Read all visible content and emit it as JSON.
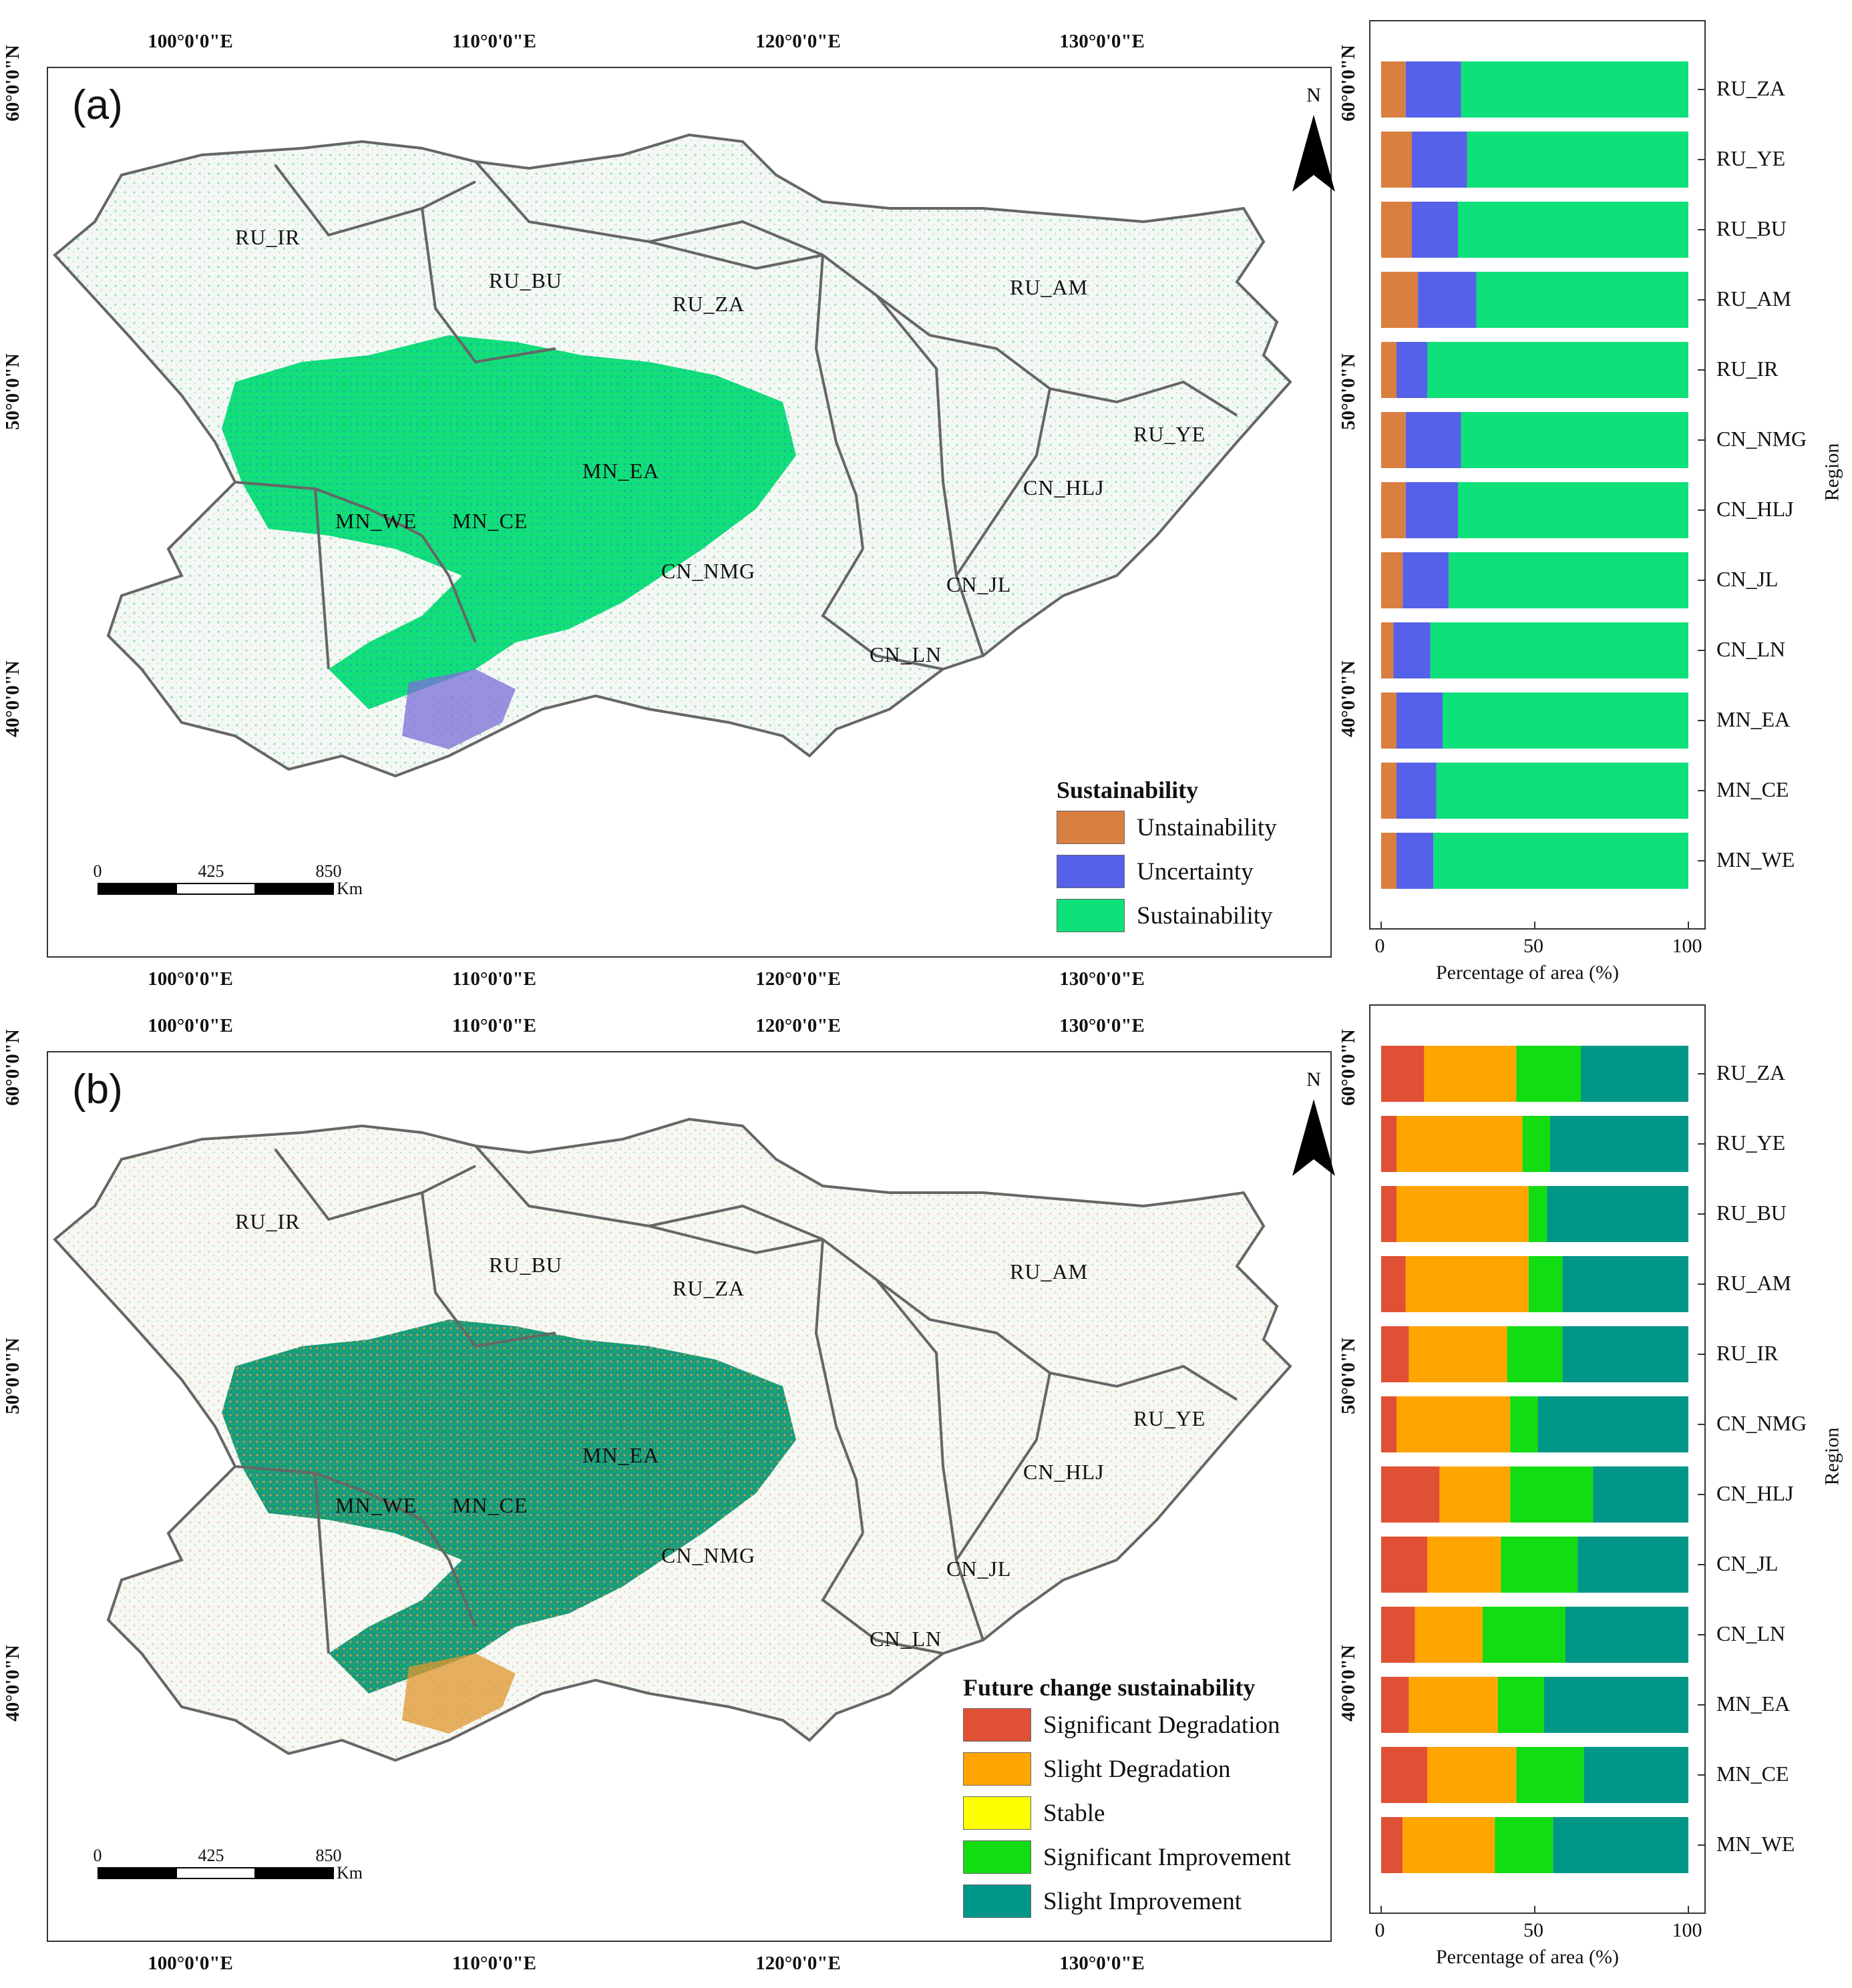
{
  "panels": [
    {
      "label": "(a)",
      "legend": {
        "title": "Sustainability",
        "items": [
          {
            "label": "Unstainability",
            "color": "#d97f3f"
          },
          {
            "label": "Uncertainty",
            "color": "#5561e8"
          },
          {
            "label": "Sustainability",
            "color": "#0ee07a"
          }
        ]
      }
    },
    {
      "label": "(b)",
      "legend": {
        "title": "Future change sustainability",
        "items": [
          {
            "label": "Significant Degradation",
            "color": "#e05035"
          },
          {
            "label": "Slight Degradation",
            "color": "#ffa500"
          },
          {
            "label": "Stable",
            "color": "#ffff00"
          },
          {
            "label": "Significant Improvement",
            "color": "#12dc12"
          },
          {
            "label": "Slight Improvement",
            "color": "#009688"
          }
        ]
      }
    }
  ],
  "map": {
    "lon_labels": [
      "100°0'0\"E",
      "110°0'0\"E",
      "120°0'0\"E",
      "130°0'0\"E"
    ],
    "lat_labels": [
      "60°0'0\"N",
      "50°0'0\"N",
      "40°0'0\"N"
    ],
    "north": "N",
    "scale": {
      "ticks": [
        "0",
        "425",
        "850"
      ],
      "unit": "Km"
    },
    "regions": [
      "RU_IR",
      "RU_BU",
      "RU_ZA",
      "RU_AM",
      "RU_YE",
      "MN_EA",
      "MN_WE",
      "MN_CE",
      "CN_NMG",
      "CN_HLJ",
      "CN_JL",
      "CN_LN"
    ]
  },
  "chart_data": [
    {
      "type": "bar",
      "orientation": "horizontal-stacked",
      "categories": [
        "RU_ZA",
        "RU_YE",
        "RU_BU",
        "RU_AM",
        "RU_IR",
        "CN_NMG",
        "CN_HLJ",
        "CN_JL",
        "CN_LN",
        "MN_EA",
        "MN_CE",
        "MN_WE"
      ],
      "series": [
        {
          "name": "Unstainability",
          "color": "#d97f3f",
          "values": [
            8,
            10,
            10,
            12,
            5,
            8,
            8,
            7,
            4,
            5,
            5,
            5
          ]
        },
        {
          "name": "Uncertainty",
          "color": "#5561e8",
          "values": [
            18,
            18,
            15,
            19,
            10,
            18,
            17,
            15,
            12,
            15,
            13,
            12
          ]
        },
        {
          "name": "Sustainability",
          "color": "#0ee07a",
          "values": [
            74,
            72,
            75,
            69,
            85,
            74,
            75,
            78,
            84,
            80,
            82,
            83
          ]
        }
      ],
      "xlabel": "Percentage of area (%)",
      "ylabel": "Region",
      "xlim": [
        0,
        100
      ],
      "xticks": [
        "0",
        "50",
        "100"
      ]
    },
    {
      "type": "bar",
      "orientation": "horizontal-stacked",
      "categories": [
        "RU_ZA",
        "RU_YE",
        "RU_BU",
        "RU_AM",
        "RU_IR",
        "CN_NMG",
        "CN_HLJ",
        "CN_JL",
        "CN_LN",
        "MN_EA",
        "MN_CE",
        "MN_WE"
      ],
      "series": [
        {
          "name": "Significant Degradation",
          "color": "#e05035",
          "values": [
            14,
            5,
            5,
            8,
            9,
            5,
            19,
            15,
            11,
            9,
            15,
            7
          ]
        },
        {
          "name": "Slight Degradation",
          "color": "#ffa500",
          "values": [
            30,
            41,
            43,
            40,
            32,
            37,
            23,
            24,
            22,
            29,
            29,
            30
          ]
        },
        {
          "name": "Stable",
          "color": "#ffff00",
          "values": [
            0,
            0,
            0,
            0,
            0,
            0,
            0,
            0,
            0,
            0,
            0,
            0
          ]
        },
        {
          "name": "Significant Improvement",
          "color": "#12dc12",
          "values": [
            21,
            9,
            6,
            11,
            18,
            9,
            27,
            25,
            27,
            15,
            22,
            19
          ]
        },
        {
          "name": "Slight Improvement",
          "color": "#009688",
          "values": [
            35,
            45,
            46,
            41,
            41,
            49,
            31,
            36,
            40,
            47,
            34,
            44
          ]
        }
      ],
      "xlabel": "Percentage of area (%)",
      "ylabel": "Region",
      "xlim": [
        0,
        100
      ],
      "xticks": [
        "0",
        "50",
        "100"
      ]
    }
  ]
}
